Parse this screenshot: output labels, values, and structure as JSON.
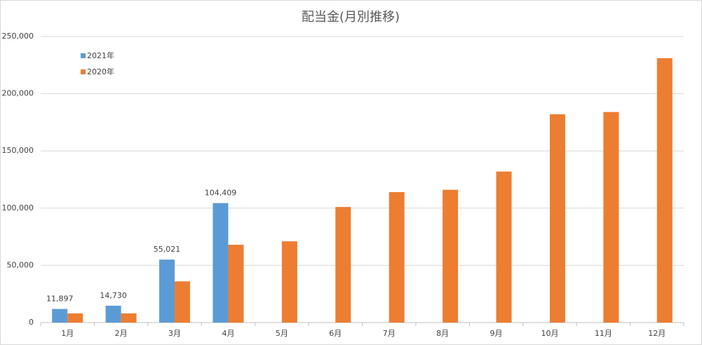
{
  "chart_data": {
    "type": "bar",
    "title": "配当金(月別推移)",
    "categories": [
      "1月",
      "2月",
      "3月",
      "4月",
      "5月",
      "6月",
      "7月",
      "8月",
      "9月",
      "10月",
      "11月",
      "12月"
    ],
    "series": [
      {
        "name": "2021年",
        "color": "#5b9bd5",
        "values": [
          11897,
          14730,
          55021,
          104409,
          null,
          null,
          null,
          null,
          null,
          null,
          null,
          null
        ],
        "value_labels": [
          "11,897",
          "14,730",
          "55,021",
          "104,409",
          null,
          null,
          null,
          null,
          null,
          null,
          null,
          null
        ]
      },
      {
        "name": "2020年",
        "color": "#ed7d31",
        "values": [
          8000,
          8000,
          36000,
          68000,
          71000,
          101000,
          114000,
          116000,
          132000,
          182000,
          184000,
          231000
        ]
      }
    ],
    "ylim": [
      0,
      250000
    ],
    "yticks": [
      0,
      {
        "value": 50000,
        "label": "50,000"
      },
      {
        "value": 100000,
        "label": "100,000"
      },
      {
        "value": 150000,
        "label": "150,000"
      },
      {
        "value": 200000,
        "label": "200,000"
      },
      {
        "value": 250000,
        "label": "250,000"
      }
    ],
    "grid": true,
    "legend": "upper-left"
  }
}
